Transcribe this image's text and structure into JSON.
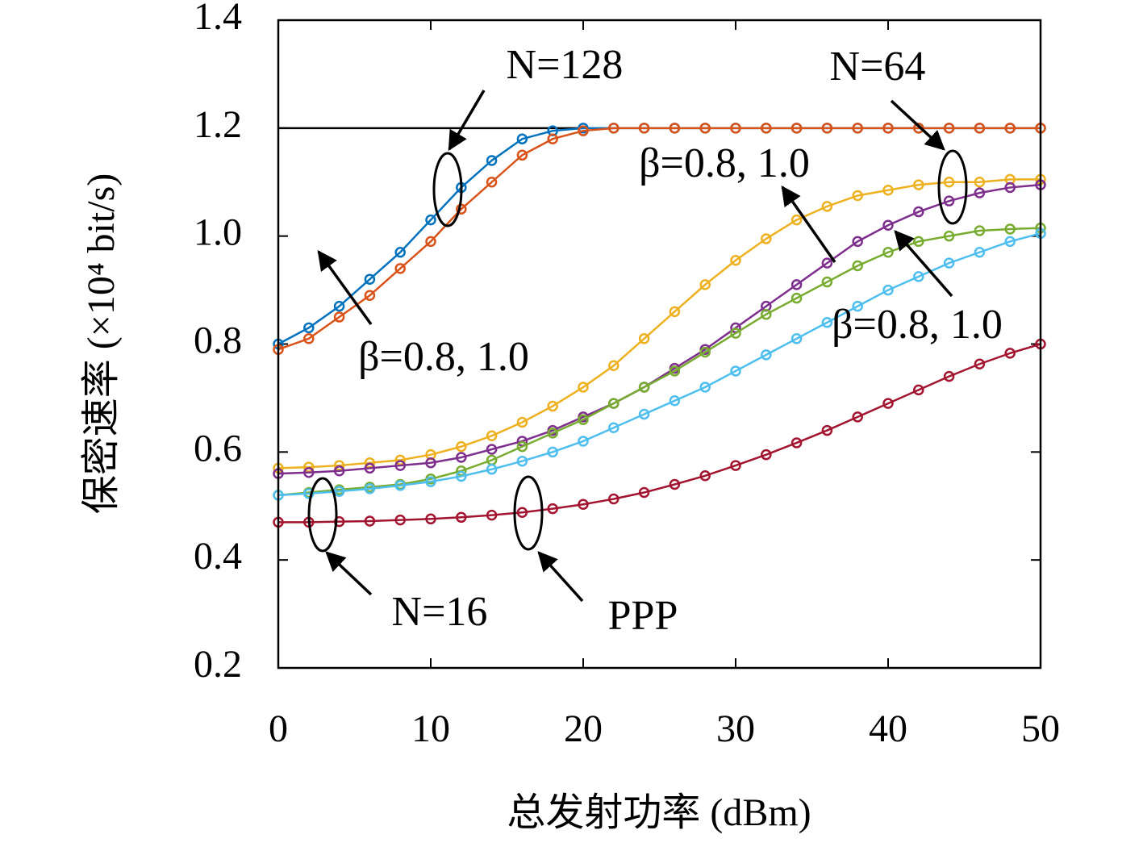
{
  "chart_data": {
    "type": "line",
    "x_label": "总发射功率 (dBm)",
    "y_label": "保密速率 (×10⁴ bit/s)",
    "xlim": [
      0,
      50
    ],
    "ylim": [
      0.2,
      1.4
    ],
    "xticks": [
      0,
      10,
      20,
      30,
      40,
      50
    ],
    "yticks": [
      0.2,
      0.4,
      0.6,
      0.8,
      {
        "value": 1,
        "label": "1.0"
      },
      1.2,
      1.4
    ],
    "x": [
      0,
      2,
      4,
      6,
      8,
      10,
      12,
      14,
      16,
      18,
      20,
      22,
      24,
      26,
      28,
      30,
      32,
      34,
      36,
      38,
      40,
      42,
      44,
      46,
      48,
      50
    ],
    "series": [
      {
        "color": "#000000",
        "markers": false,
        "values": [
          1.2,
          1.2,
          1.2,
          1.2,
          1.2,
          1.2,
          1.2,
          1.2,
          1.2,
          1.2,
          1.2,
          null,
          null,
          null,
          null,
          null,
          null,
          null,
          null,
          null,
          null,
          null,
          null,
          null,
          null,
          null
        ]
      },
      {
        "color": "#0072bd",
        "markers": true,
        "values": [
          0.8,
          0.83,
          0.87,
          0.92,
          0.97,
          1.03,
          1.09,
          1.14,
          1.18,
          1.195,
          1.2,
          1.2,
          1.2,
          1.2,
          1.2,
          1.2,
          1.2,
          1.2,
          1.2,
          1.2,
          1.2,
          1.2,
          1.2,
          1.2,
          1.2,
          1.2
        ]
      },
      {
        "color": "#d95319",
        "markers": true,
        "values": [
          0.79,
          0.81,
          0.85,
          0.89,
          0.94,
          0.99,
          1.05,
          1.1,
          1.15,
          1.18,
          1.195,
          1.2,
          1.2,
          1.2,
          1.2,
          1.2,
          1.2,
          1.2,
          1.2,
          1.2,
          1.2,
          1.2,
          1.2,
          1.2,
          1.2,
          1.2
        ]
      },
      {
        "color": "#edb120",
        "markers": true,
        "values": [
          0.57,
          0.572,
          0.575,
          0.58,
          0.585,
          0.595,
          0.61,
          0.63,
          0.655,
          0.685,
          0.72,
          0.76,
          0.81,
          0.86,
          0.91,
          0.955,
          0.995,
          1.03,
          1.055,
          1.075,
          1.085,
          1.095,
          1.1,
          1.1,
          1.105,
          1.105
        ]
      },
      {
        "color": "#7e2f8e",
        "markers": true,
        "values": [
          0.56,
          0.562,
          0.565,
          0.57,
          0.575,
          0.58,
          0.59,
          0.605,
          0.62,
          0.64,
          0.665,
          0.69,
          0.72,
          0.755,
          0.79,
          0.83,
          0.87,
          0.91,
          0.95,
          0.99,
          1.02,
          1.045,
          1.065,
          1.08,
          1.09,
          1.095
        ]
      },
      {
        "color": "#77ac30",
        "markers": true,
        "values": [
          0.52,
          0.525,
          0.53,
          0.535,
          0.54,
          0.55,
          0.565,
          0.585,
          0.61,
          0.635,
          0.66,
          0.69,
          0.72,
          0.75,
          0.785,
          0.82,
          0.855,
          0.885,
          0.915,
          0.945,
          0.97,
          0.99,
          1.0,
          1.01,
          1.013,
          1.015
        ]
      },
      {
        "color": "#4dbeee",
        "markers": true,
        "values": [
          0.52,
          0.523,
          0.527,
          0.532,
          0.538,
          0.545,
          0.555,
          0.568,
          0.583,
          0.6,
          0.62,
          0.645,
          0.67,
          0.695,
          0.72,
          0.75,
          0.78,
          0.81,
          0.84,
          0.87,
          0.9,
          0.925,
          0.95,
          0.97,
          0.99,
          1.005
        ]
      },
      {
        "color": "#a2142f",
        "markers": true,
        "values": [
          0.47,
          0.47,
          0.471,
          0.472,
          0.474,
          0.476,
          0.479,
          0.483,
          0.488,
          0.495,
          0.503,
          0.513,
          0.525,
          0.54,
          0.556,
          0.575,
          0.595,
          0.617,
          0.64,
          0.665,
          0.69,
          0.715,
          0.74,
          0.763,
          0.783,
          0.8
        ]
      }
    ],
    "annotations": [
      "N=128",
      "N=64",
      "β=0.8, 1.0",
      "β=0.8, 1.0",
      "β=0.8, 1.0",
      "N=16",
      "PPP"
    ]
  }
}
